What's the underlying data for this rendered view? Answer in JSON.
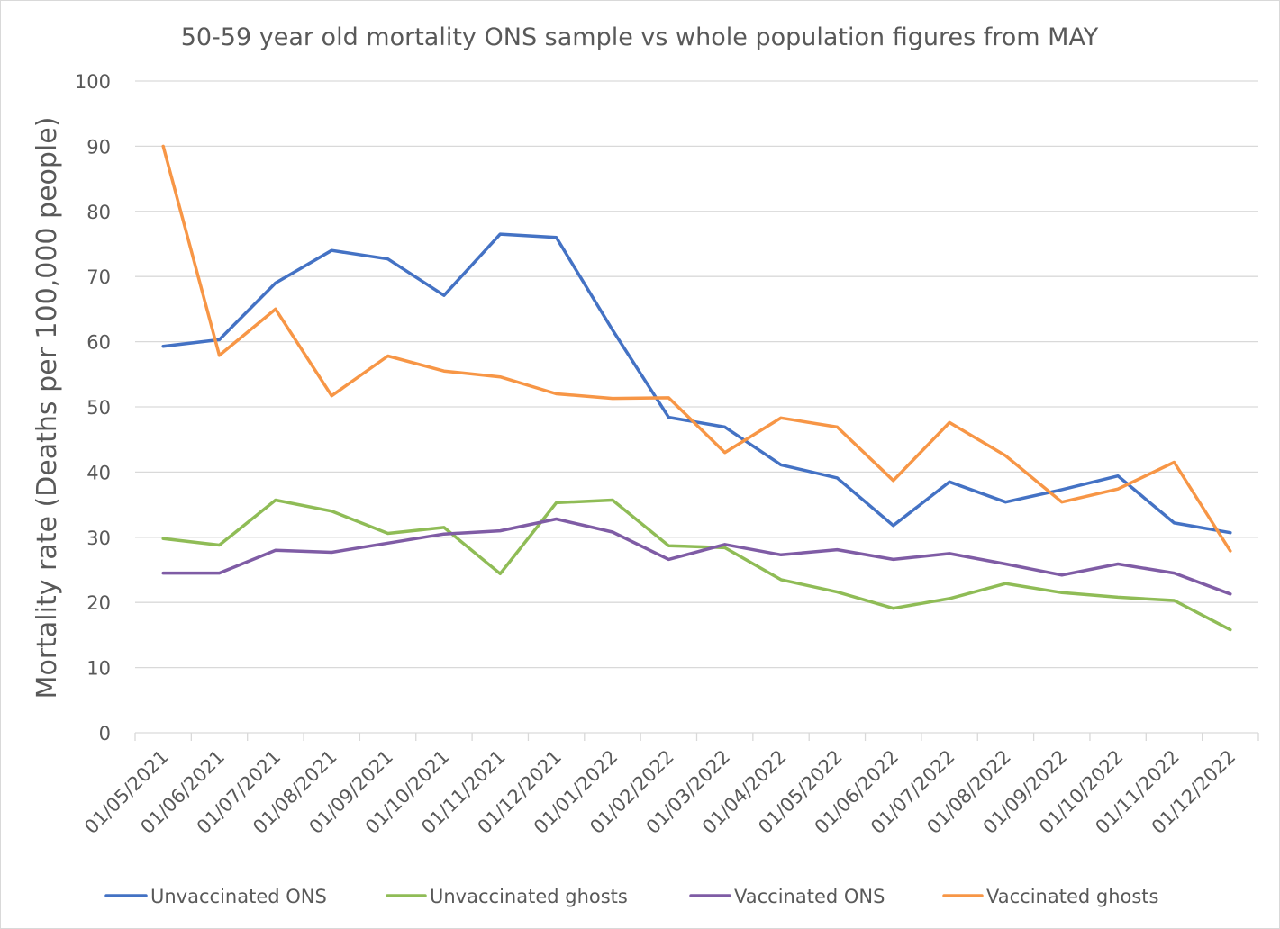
{
  "chart_data": {
    "type": "line",
    "title": "50-59 year old mortality ONS sample vs whole population figures from MAY",
    "xlabel": "",
    "ylabel": "Mortality rate (Deaths per 100,000 people)",
    "ylim": [
      0,
      100
    ],
    "yticks": [
      "0",
      "10",
      "20",
      "30",
      "40",
      "50",
      "60",
      "70",
      "80",
      "90",
      "100"
    ],
    "grid": true,
    "legend_position": "bottom",
    "categories": [
      "01/05/2021",
      "01/06/2021",
      "01/07/2021",
      "01/08/2021",
      "01/09/2021",
      "01/10/2021",
      "01/11/2021",
      "01/12/2021",
      "01/01/2022",
      "01/02/2022",
      "01/03/2022",
      "01/04/2022",
      "01/05/2022",
      "01/06/2022",
      "01/07/2022",
      "01/08/2022",
      "01/09/2022",
      "01/10/2022",
      "01/11/2022",
      "01/12/2022"
    ],
    "series": [
      {
        "name": "Unvaccinated ONS",
        "color": "#4472c4",
        "values": [
          59.3,
          60.3,
          69.0,
          74.0,
          72.7,
          67.1,
          76.5,
          76.0,
          61.8,
          48.4,
          46.9,
          41.1,
          39.1,
          31.8,
          38.5,
          35.4,
          37.3,
          39.4,
          32.2,
          30.7
        ]
      },
      {
        "name": "Unvaccinated ghosts",
        "color": "#8fbc56",
        "values": [
          29.8,
          28.8,
          35.7,
          34.0,
          30.6,
          31.5,
          24.4,
          35.3,
          35.7,
          28.7,
          28.4,
          23.5,
          21.6,
          19.1,
          20.6,
          22.9,
          21.5,
          20.8,
          20.3,
          15.8
        ]
      },
      {
        "name": "Vaccinated ONS",
        "color": "#7f5ca5",
        "values": [
          24.5,
          24.5,
          28.0,
          27.7,
          29.1,
          30.5,
          31.0,
          32.8,
          30.8,
          26.6,
          28.9,
          27.3,
          28.1,
          26.6,
          27.5,
          25.9,
          24.2,
          25.9,
          24.5,
          21.3
        ]
      },
      {
        "name": "Vaccinated ghosts",
        "color": "#f79646",
        "values": [
          90.0,
          57.9,
          65.0,
          51.7,
          57.8,
          55.5,
          54.6,
          52.0,
          51.3,
          51.4,
          43.0,
          48.3,
          46.9,
          38.7,
          47.6,
          42.5,
          35.4,
          37.4,
          41.5,
          27.9
        ]
      }
    ]
  }
}
